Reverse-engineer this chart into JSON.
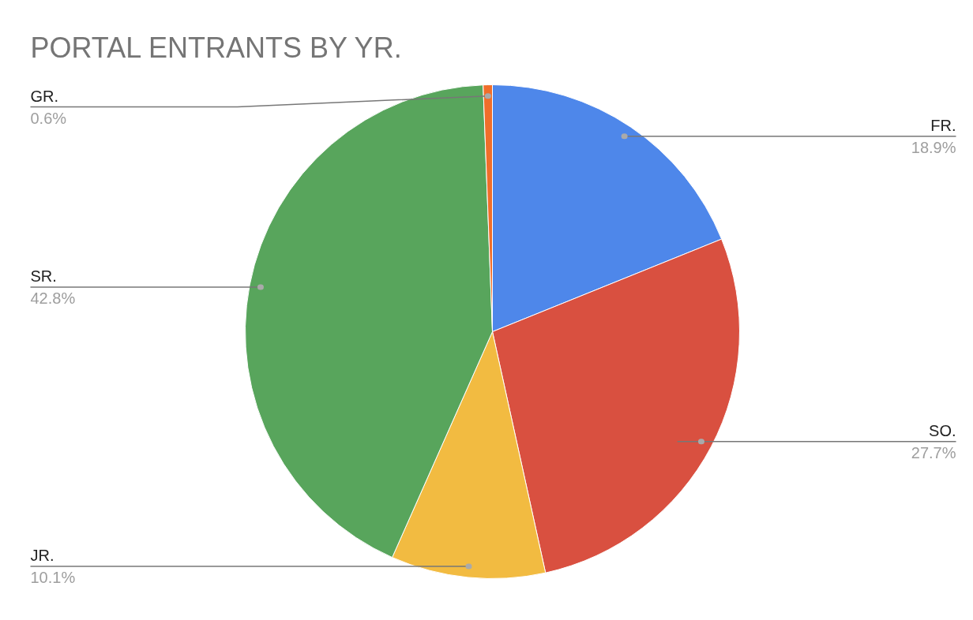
{
  "chart_data": {
    "type": "pie",
    "title": "PORTAL ENTRANTS BY YR.",
    "categories": [
      "FR.",
      "SO.",
      "JR.",
      "SR.",
      "GR."
    ],
    "values": [
      18.9,
      27.7,
      10.1,
      42.8,
      0.6
    ],
    "colors": [
      "#4e87ea",
      "#d95040",
      "#f2bb41",
      "#58a55c",
      "#f06e2a"
    ],
    "value_labels": [
      "18.9%",
      "27.7%",
      "10.1%",
      "42.8%",
      "0.6%"
    ]
  }
}
